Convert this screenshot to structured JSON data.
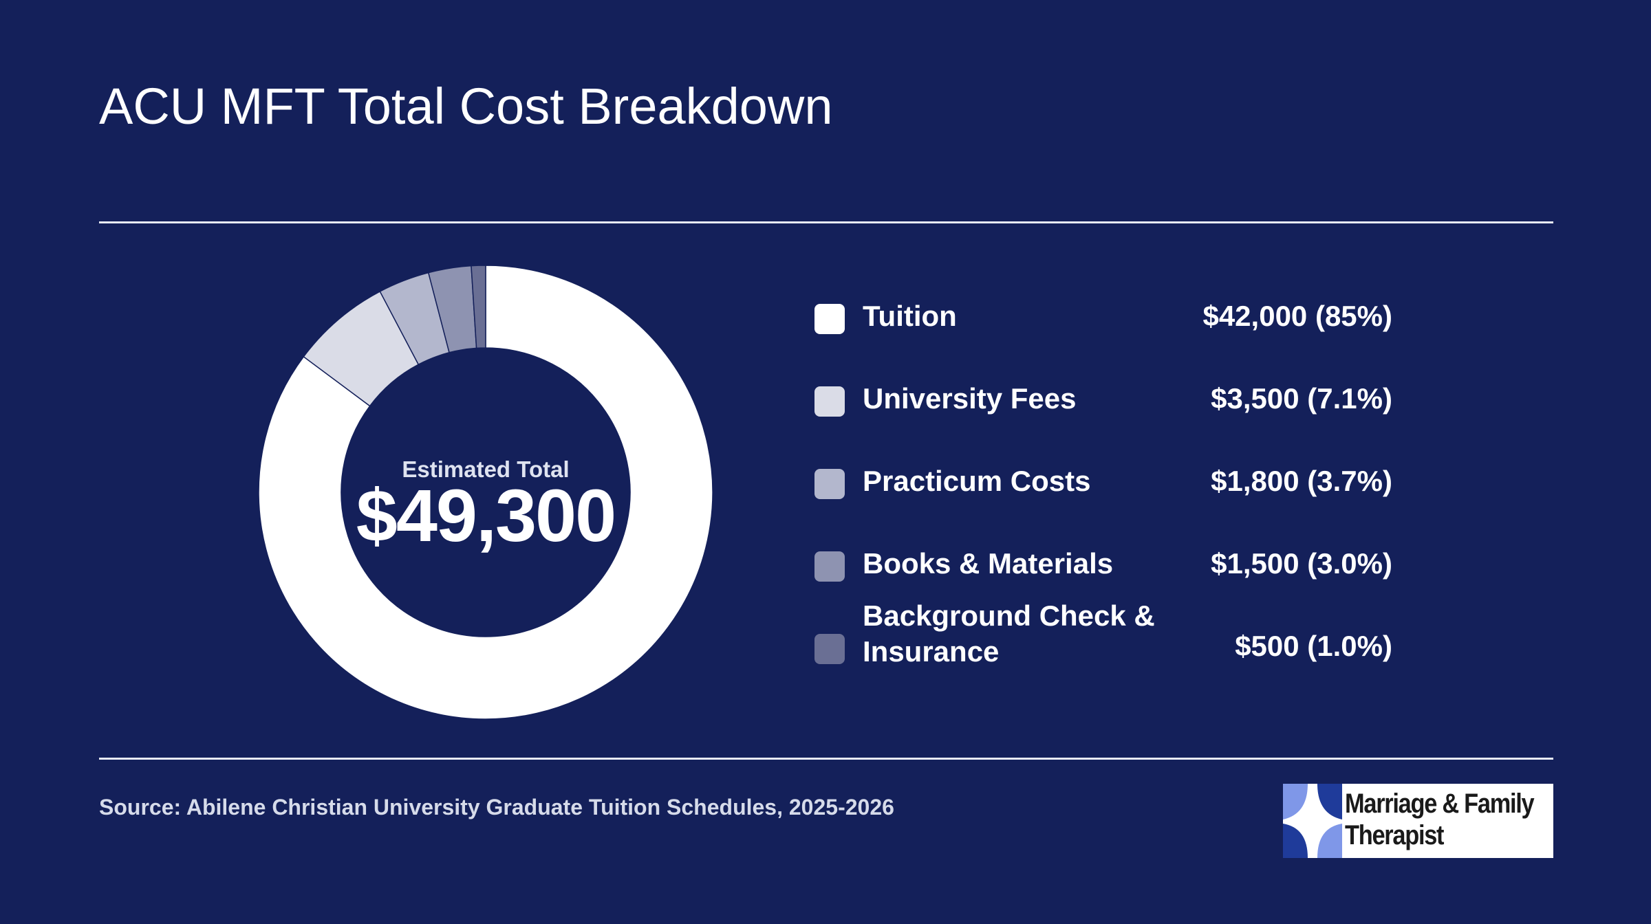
{
  "title": "ACU MFT Total Cost Breakdown",
  "center": {
    "label": "Estimated Total",
    "value": "$49,300"
  },
  "colors": {
    "background": "#14205a",
    "separator": "#14205a"
  },
  "chart_data": {
    "type": "pie",
    "variant": "donut",
    "title": "ACU MFT Total Cost Breakdown",
    "total": 49300,
    "legend_position": "right",
    "categories": [
      "Tuition",
      "University Fees",
      "Practicum Costs",
      "Books & Materials",
      "Background Check & Insurance"
    ],
    "values": [
      42000,
      3500,
      1800,
      1500,
      500
    ],
    "slices": [
      {
        "label": "Tuition",
        "value": 42000,
        "value_text": "$42,000 (85%)",
        "color": "#ffffff"
      },
      {
        "label": "University Fees",
        "value": 3500,
        "value_text": "$3,500 (7.1%)",
        "color": "#dadce7"
      },
      {
        "label": "Practicum Costs",
        "value": 1800,
        "value_text": "$1,800 (3.7%)",
        "color": "#b3b7cd"
      },
      {
        "label": "Books & Materials",
        "value": 1500,
        "value_text": "$1,500 (3.0%)",
        "color": "#8e93b1"
      },
      {
        "label": "Background Check & Insurance",
        "value": 500,
        "value_text": "$500 (1.0%)",
        "color": "#6a6f94"
      }
    ]
  },
  "source": "Source: Abilene Christian University Graduate Tuition Schedules, 2025-2026",
  "logo": {
    "line1": "Marriage & Family",
    "line2": "Therapist"
  }
}
